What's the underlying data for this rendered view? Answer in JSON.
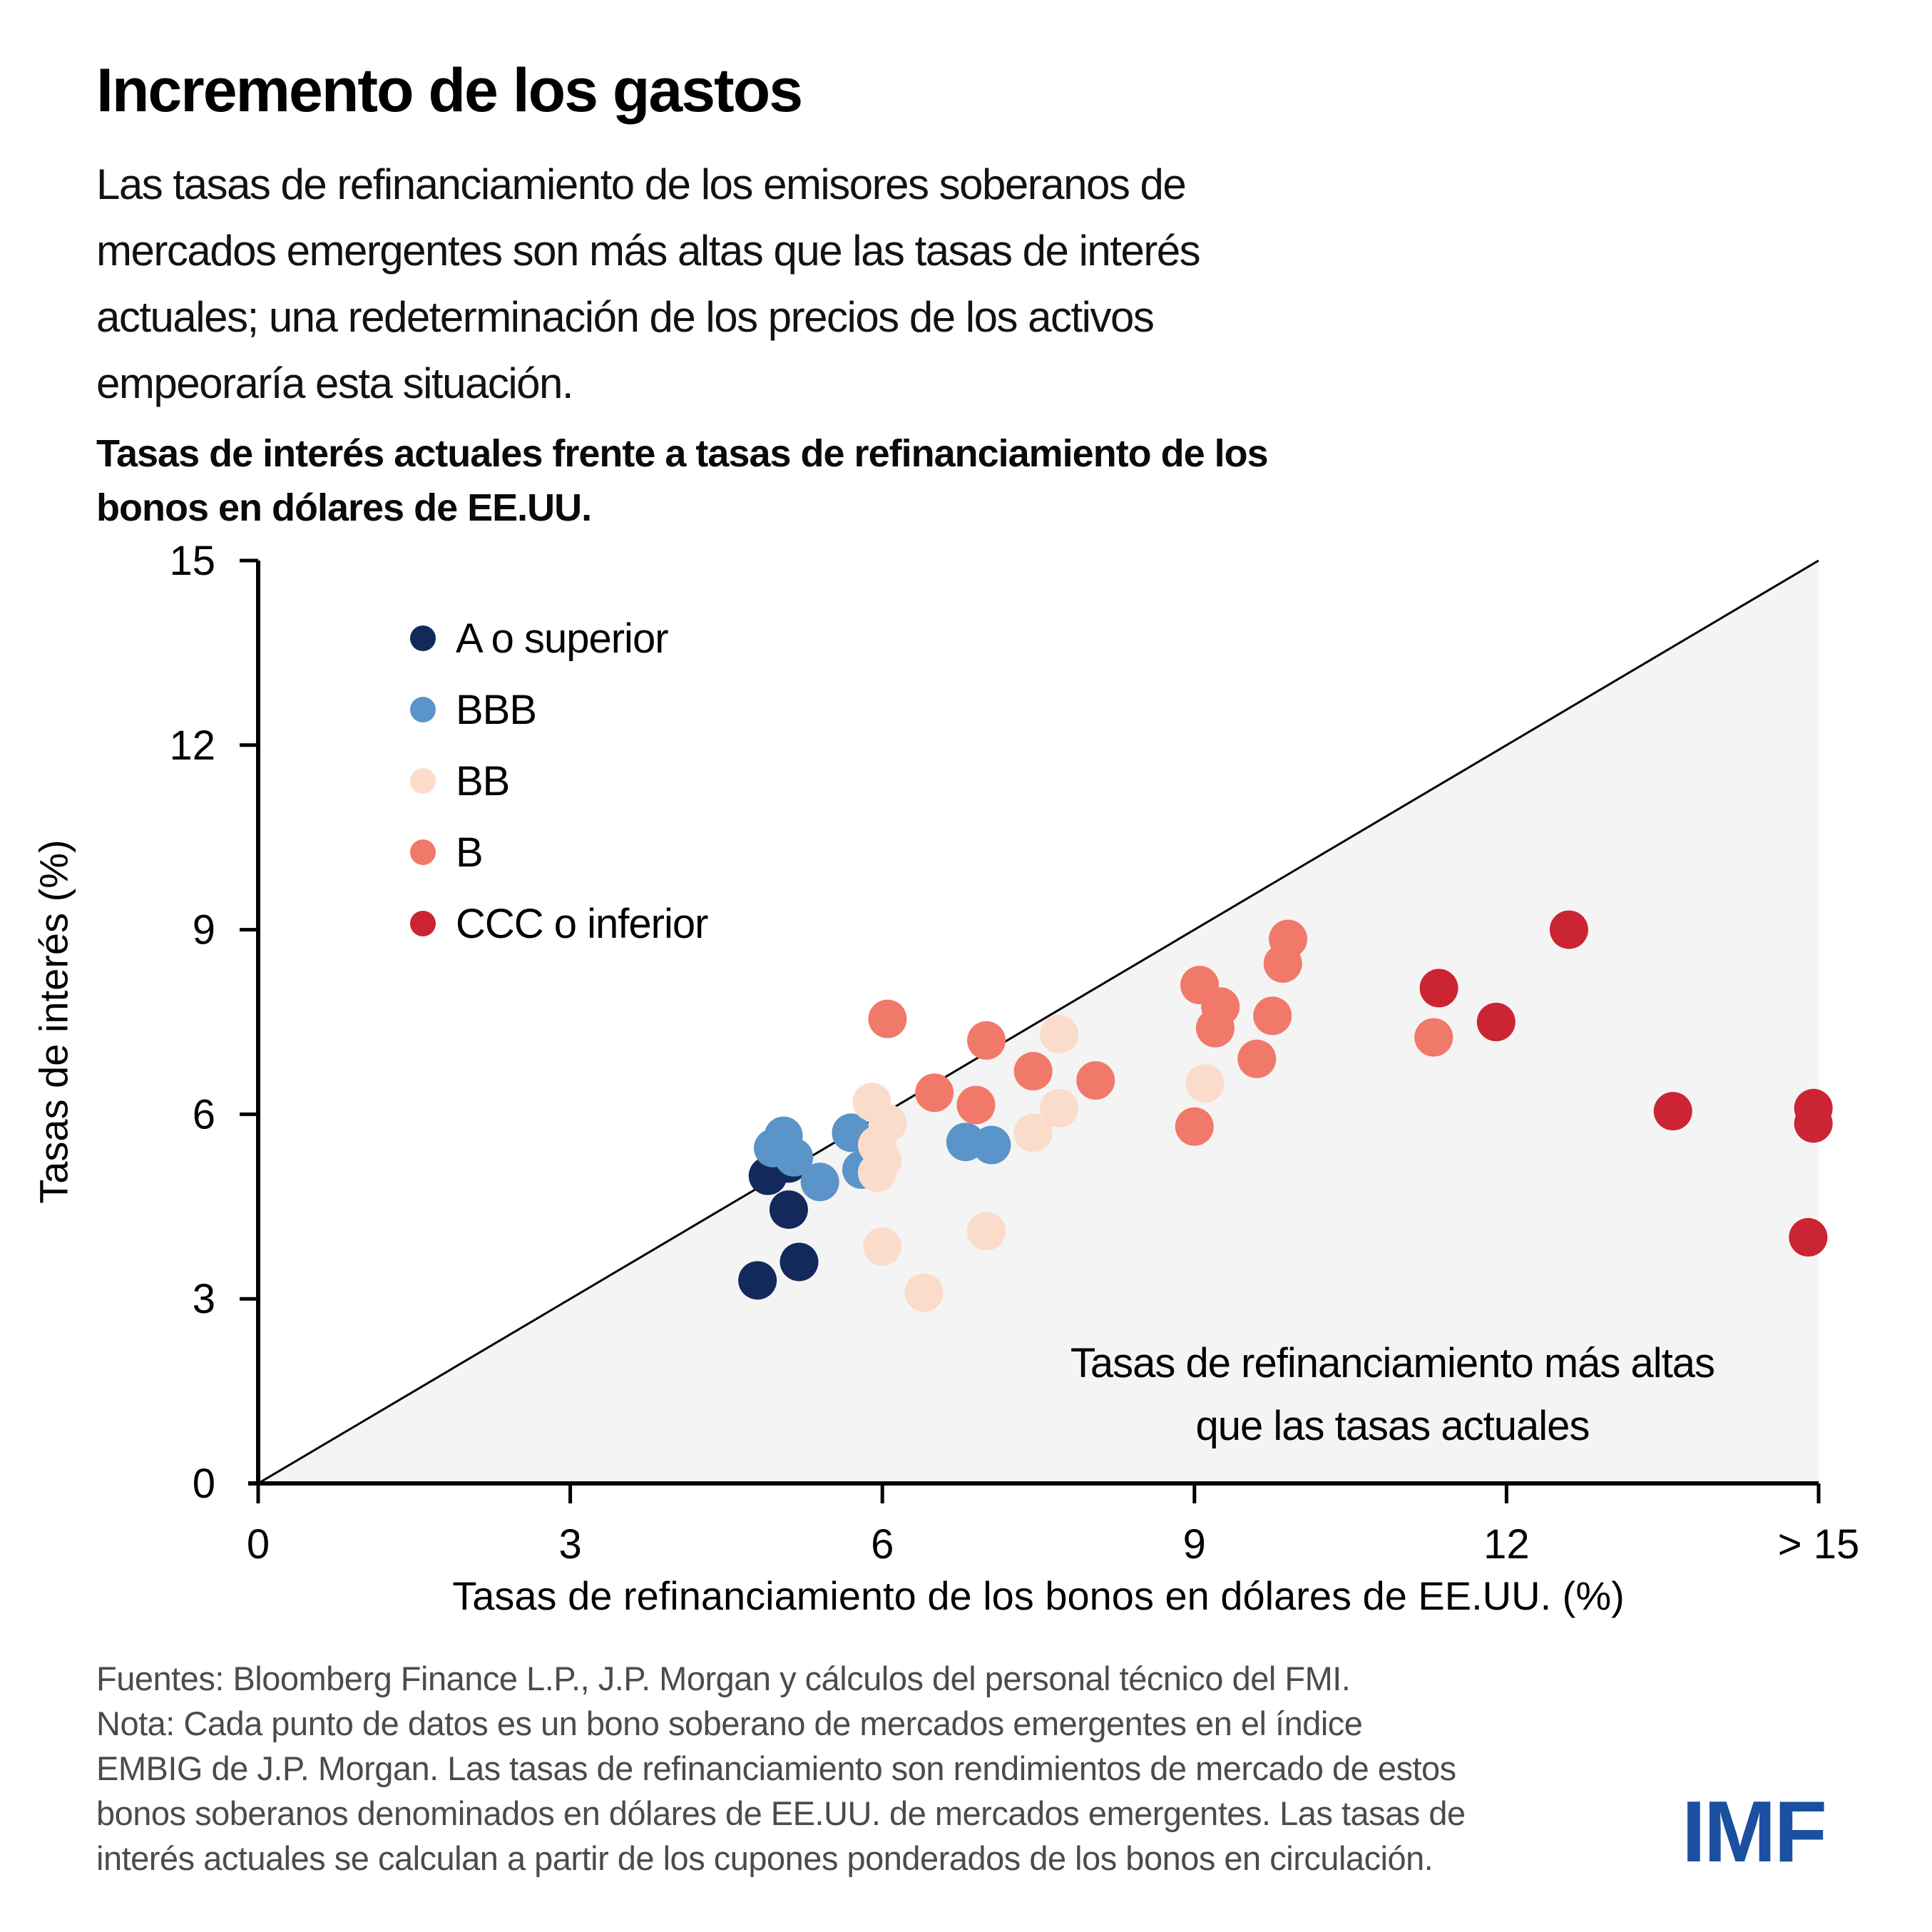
{
  "header": {
    "title": "Incremento de los gastos",
    "subtitle_lines": [
      "Las tasas de refinanciamiento de los emisores soberanos de",
      "mercados emergentes son más altas que las tasas de interés",
      "actuales; una redeterminación de los precios de los activos",
      "empeoraría esta situación."
    ],
    "chart_title_lines": [
      "Tasas de interés actuales frente a tasas de refinanciamiento de los",
      "bonos en dólares de EE.UU."
    ]
  },
  "legend": {
    "items": [
      {
        "label": "A o superior",
        "color": "#13295c"
      },
      {
        "label": "BBB",
        "color": "#5b94c8"
      },
      {
        "label": "BB",
        "color": "#fbdccb"
      },
      {
        "label": "B",
        "color": "#f1796a"
      },
      {
        "label": "CCC o inferior",
        "color": "#cb2433"
      }
    ]
  },
  "chart_data": {
    "type": "scatter",
    "title": "Tasas de interés actuales frente a tasas de refinanciamiento de los bonos en dólares de EE.UU.",
    "xlabel": "Tasas de refinanciamiento de los bonos en dólares de EE.UU. (%)",
    "ylabel": "Tasas de interés (%)",
    "xlim": [
      0,
      15
    ],
    "ylim": [
      0,
      15
    ],
    "grid": false,
    "legend_position": "upper-left-inside",
    "x_tick_labels": [
      "0",
      "3",
      "6",
      "9",
      "12",
      "> 15"
    ],
    "x_tick_values": [
      0,
      3,
      6,
      9,
      12,
      15
    ],
    "y_tick_labels": [
      "0",
      "3",
      "6",
      "9",
      "12",
      "15"
    ],
    "y_tick_values": [
      0,
      3,
      6,
      9,
      12,
      15
    ],
    "diagonal_line": {
      "from": [
        0,
        0
      ],
      "to": [
        15,
        15
      ]
    },
    "shaded_region": {
      "vertices": [
        [
          0,
          0
        ],
        [
          15,
          15
        ],
        [
          15,
          0
        ]
      ],
      "color": "#f4f4f4"
    },
    "annotation_lines": [
      "Tasas de refinanciamiento más altas",
      "que las tasas actuales"
    ],
    "series": [
      {
        "name": "A o superior",
        "color": "#13295c",
        "points": [
          [
            4.8,
            3.3
          ],
          [
            5.2,
            3.6
          ],
          [
            5.1,
            4.45
          ],
          [
            4.9,
            5.0
          ],
          [
            5.1,
            5.2
          ]
        ]
      },
      {
        "name": "BBB",
        "color": "#5b94c8",
        "points": [
          [
            5.05,
            5.65
          ],
          [
            4.95,
            5.45
          ],
          [
            5.15,
            5.3
          ],
          [
            5.4,
            4.9
          ],
          [
            5.7,
            5.7
          ],
          [
            5.8,
            5.1
          ],
          [
            6.8,
            5.55
          ],
          [
            7.05,
            5.5
          ]
        ]
      },
      {
        "name": "BB",
        "color": "#fbdccb",
        "points": [
          [
            5.9,
            6.2
          ],
          [
            6.05,
            5.85
          ],
          [
            5.95,
            5.5
          ],
          [
            6.0,
            5.25
          ],
          [
            5.95,
            5.05
          ],
          [
            6.0,
            3.85
          ],
          [
            6.4,
            3.1
          ],
          [
            7.0,
            4.1
          ],
          [
            7.45,
            5.7
          ],
          [
            7.7,
            6.1
          ],
          [
            7.7,
            7.3
          ],
          [
            9.1,
            6.5
          ]
        ]
      },
      {
        "name": "B",
        "color": "#f1796a",
        "points": [
          [
            6.05,
            7.55
          ],
          [
            7.0,
            7.2
          ],
          [
            7.45,
            6.7
          ],
          [
            6.5,
            6.35
          ],
          [
            6.9,
            6.15
          ],
          [
            8.05,
            6.55
          ],
          [
            9.0,
            5.8
          ],
          [
            9.05,
            8.1
          ],
          [
            9.25,
            7.75
          ],
          [
            9.2,
            7.4
          ],
          [
            9.75,
            7.6
          ],
          [
            9.6,
            6.9
          ],
          [
            9.9,
            8.85
          ],
          [
            9.85,
            8.45
          ],
          [
            11.3,
            7.25
          ]
        ]
      },
      {
        "name": "CCC o inferior",
        "color": "#cb2433",
        "points": [
          [
            11.35,
            8.05
          ],
          [
            11.9,
            7.5
          ],
          [
            12.6,
            9.0
          ],
          [
            13.6,
            6.05
          ],
          [
            14.95,
            6.1
          ],
          [
            14.95,
            5.85
          ],
          [
            14.9,
            4.0
          ]
        ]
      }
    ]
  },
  "footer": {
    "lines": [
      "Fuentes: Bloomberg Finance L.P., J.P. Morgan y cálculos del personal técnico del FMI.",
      "Nota: Cada punto de datos es un bono soberano de mercados emergentes en el índice",
      "EMBIG de J.P. Morgan. Las tasas de refinanciamiento son rendimientos de mercado de estos",
      "bonos soberanos denominados en dólares de EE.UU. de mercados emergentes. Las tasas de",
      "interés actuales se calculan a partir de los cupones ponderados de los bonos en circulación."
    ]
  },
  "logo": {
    "text": "IMF",
    "color": "#1b4fa0"
  }
}
